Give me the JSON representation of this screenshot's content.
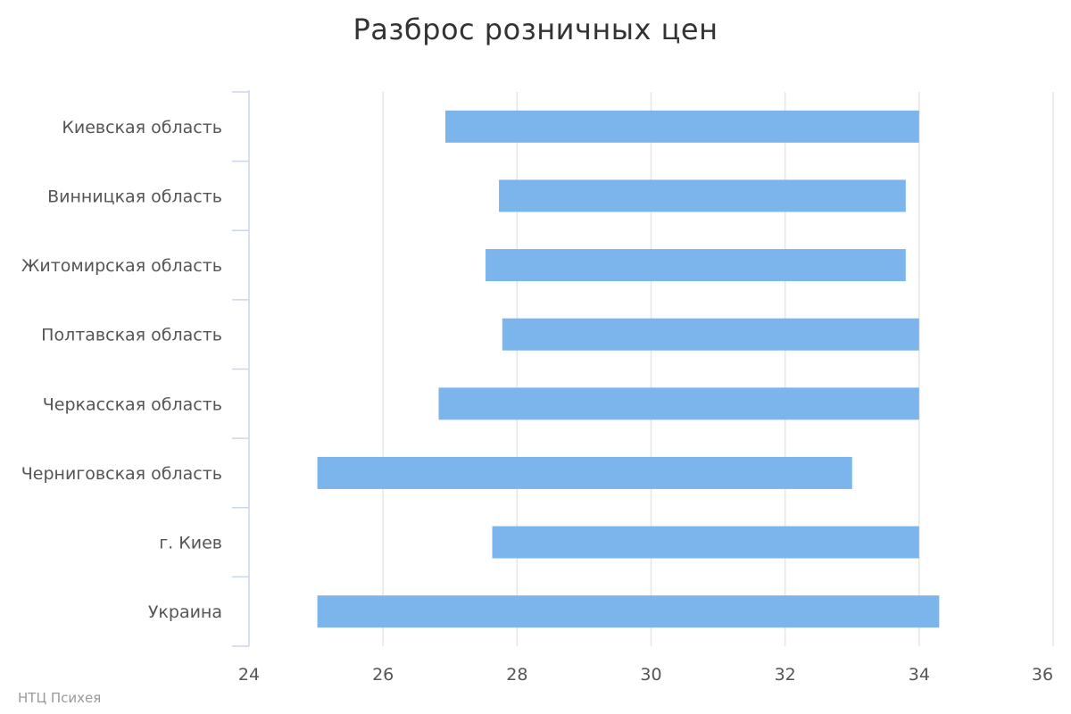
{
  "chart_data": {
    "type": "bar",
    "orientation": "horizontal",
    "title": "Разброс розничных цен",
    "categories": [
      "Киевская область",
      "Винницкая область",
      "Житомирская область",
      "Полтавская область",
      "Черкасская область",
      "Черниговская область",
      "г. Киев",
      "Украина"
    ],
    "ranges": [
      [
        26.93,
        34.0
      ],
      [
        27.73,
        33.8
      ],
      [
        27.53,
        33.8
      ],
      [
        27.78,
        34.0
      ],
      [
        26.83,
        34.0
      ],
      [
        25.02,
        33.0
      ],
      [
        27.63,
        34.0
      ],
      [
        25.02,
        34.3
      ]
    ],
    "xlim": [
      24,
      36
    ],
    "xticks": [
      "24",
      "26",
      "28",
      "30",
      "32",
      "34",
      "36"
    ],
    "xlabel": "",
    "ylabel": "",
    "grid": true,
    "bar_color": "#7cb5ec",
    "grid_color": "#e6e6e6",
    "axis_color": "#ccd6eb"
  },
  "credits": "НТЦ Психея"
}
